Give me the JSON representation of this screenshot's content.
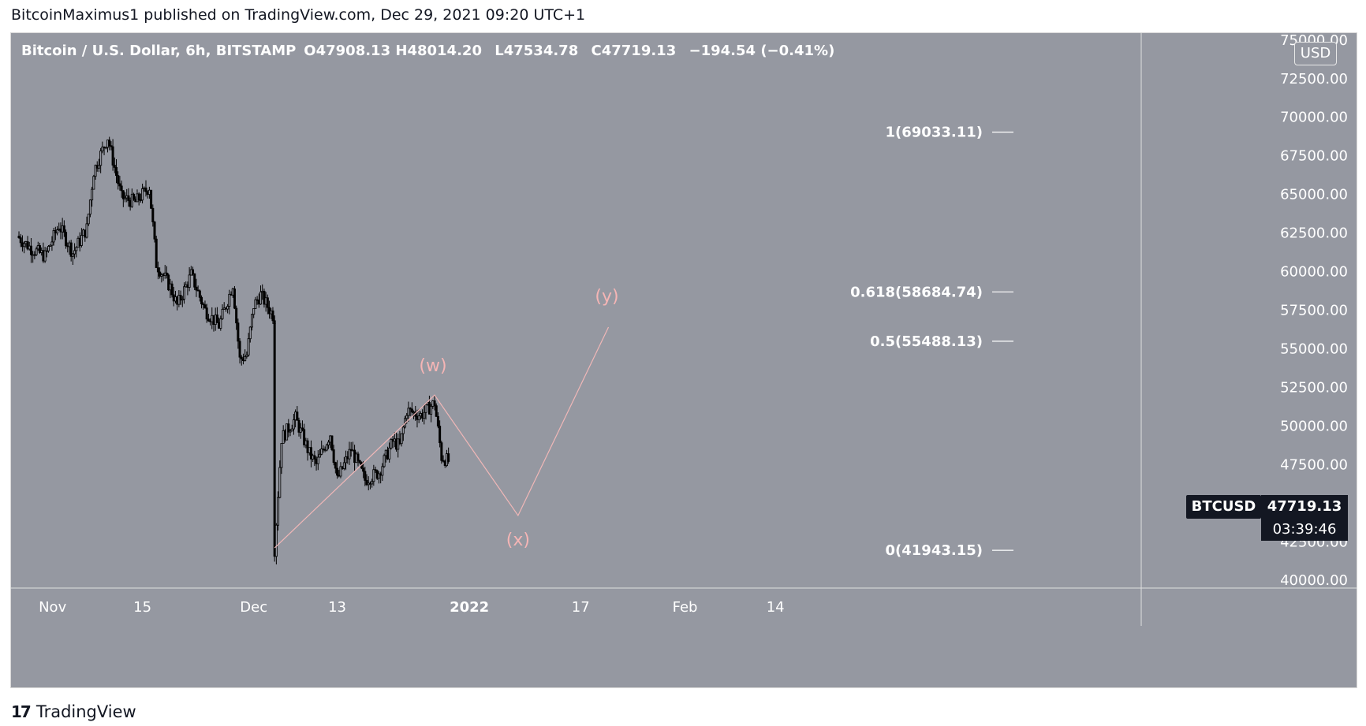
{
  "header": {
    "attribution": "BitcoinMaximus1 published on TradingView.com, Dec 29, 2021 09:20 UTC+1"
  },
  "legend": {
    "symbol": "Bitcoin / U.S. Dollar, 6h, BITSTAMP",
    "open": "O47908.13",
    "high": "H48014.20",
    "low": "L47534.78",
    "close": "C47719.13",
    "change": "−194.54 (−0.41%)"
  },
  "currency": "USD",
  "price_tag": {
    "symbol": "BTCUSD",
    "price": "47719.13",
    "countdown": "03:39:46"
  },
  "footer": {
    "brand": "TradingView",
    "logo_icon": "tradingview-logo-icon"
  },
  "colors": {
    "background": "#9598a1",
    "candle": "#000000",
    "wave": "#f0b7b7",
    "wave_label": "#f5b5b5",
    "fib_text": "#ffffff"
  },
  "chart_data": {
    "type": "candlestick",
    "timeframe": "6h",
    "y_axis": {
      "ylim": [
        39500,
        75500
      ],
      "tick_labels": [
        "40000.00",
        "42500.00",
        "45000.00",
        "47500.00",
        "50000.00",
        "52500.00",
        "55000.00",
        "57500.00",
        "60000.00",
        "62500.00",
        "65000.00",
        "67500.00",
        "70000.00",
        "72500.00",
        "75000.00"
      ]
    },
    "x_axis": {
      "tick_labels": [
        "Nov",
        "15",
        "Dec",
        "13",
        "2022",
        "17",
        "Feb",
        "14"
      ]
    },
    "price_path": [
      {
        "date": "2021-10-28",
        "price": 62300
      },
      {
        "date": "2021-10-30",
        "price": 61500
      },
      {
        "date": "2021-11-01",
        "price": 61000
      },
      {
        "date": "2021-11-03",
        "price": 63000
      },
      {
        "date": "2021-11-05",
        "price": 61200
      },
      {
        "date": "2021-11-07",
        "price": 62800
      },
      {
        "date": "2021-11-08",
        "price": 66500
      },
      {
        "date": "2021-11-10",
        "price": 68700
      },
      {
        "date": "2021-11-12",
        "price": 64800
      },
      {
        "date": "2021-11-14",
        "price": 64500
      },
      {
        "date": "2021-11-16",
        "price": 65500
      },
      {
        "date": "2021-11-17",
        "price": 60500
      },
      {
        "date": "2021-11-19",
        "price": 59000
      },
      {
        "date": "2021-11-20",
        "price": 57800
      },
      {
        "date": "2021-11-22",
        "price": 59800
      },
      {
        "date": "2021-11-24",
        "price": 57500
      },
      {
        "date": "2021-11-26",
        "price": 56500
      },
      {
        "date": "2021-11-27",
        "price": 57800
      },
      {
        "date": "2021-11-28",
        "price": 59200
      },
      {
        "date": "2021-11-29",
        "price": 54300
      },
      {
        "date": "2021-11-30",
        "price": 54600
      },
      {
        "date": "2021-12-01",
        "price": 57800
      },
      {
        "date": "2021-12-02",
        "price": 58500
      },
      {
        "date": "2021-12-04",
        "price": 57000
      },
      {
        "date": "2021-12-04",
        "price": 42000
      },
      {
        "date": "2021-12-05",
        "price": 49200
      },
      {
        "date": "2021-12-07",
        "price": 50500
      },
      {
        "date": "2021-12-09",
        "price": 48200
      },
      {
        "date": "2021-12-10",
        "price": 47500
      },
      {
        "date": "2021-12-12",
        "price": 49500
      },
      {
        "date": "2021-12-13",
        "price": 46500
      },
      {
        "date": "2021-12-15",
        "price": 48500
      },
      {
        "date": "2021-12-17",
        "price": 46500
      },
      {
        "date": "2021-12-19",
        "price": 47000
      },
      {
        "date": "2021-12-21",
        "price": 49000
      },
      {
        "date": "2021-12-22",
        "price": 48700
      },
      {
        "date": "2021-12-23",
        "price": 51000
      },
      {
        "date": "2021-12-25",
        "price": 50700
      },
      {
        "date": "2021-12-27",
        "price": 51500
      },
      {
        "date": "2021-12-28",
        "price": 48000
      },
      {
        "date": "2021-12-29",
        "price": 47719
      }
    ],
    "current_price": 47719.13,
    "fibonacci_levels": [
      {
        "ratio": "1",
        "label": "1(69033.11)",
        "price": 69033.11
      },
      {
        "ratio": "0.618",
        "label": "0.618(58684.74)",
        "price": 58684.74
      },
      {
        "ratio": "0.5",
        "label": "0.5(55488.13)",
        "price": 55488.13
      },
      {
        "ratio": "0",
        "label": "0(41943.15)",
        "price": 41943.15
      }
    ],
    "wave_points": [
      {
        "label": "",
        "date": "2021-12-04",
        "price": 42100
      },
      {
        "label": "(w)",
        "date": "2021-12-27",
        "price": 52000
      },
      {
        "label": "(x)",
        "date": "2022-01-08",
        "price": 44200
      },
      {
        "label": "(y)",
        "date": "2022-01-21",
        "price": 56400
      }
    ],
    "grid": false
  }
}
